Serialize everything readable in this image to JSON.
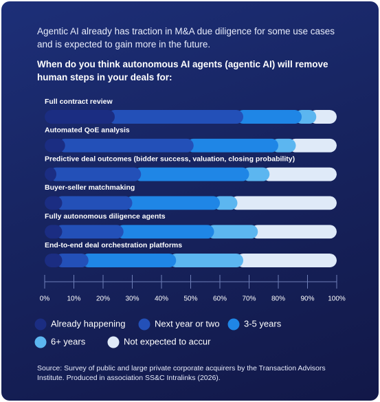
{
  "chart_data": {
    "type": "bar",
    "orientation": "horizontal",
    "stacked": true,
    "intro": "Agentic AI already has traction in M&A due diligence for some use cases and is expected to gain more in the future.",
    "title": "When do you think autonomous AI agents (agentic AI) will remove human steps in your deals for:",
    "categories": [
      "Full contract review",
      "Automated QoE analysis",
      "Predictive deal outcomes (bidder success, valuation, closing probability)",
      "Buyer-seller matchmaking",
      "Fully autonomous diligence agents",
      "End-to-end deal orchestration platforms"
    ],
    "series": [
      {
        "name": "Already happening",
        "color": "#1b2d82",
        "values": [
          24,
          7,
          4,
          6,
          6,
          6
        ]
      },
      {
        "name": "Next year or two",
        "color": "#2350b8",
        "values": [
          44,
          44,
          29,
          24,
          21,
          9
        ]
      },
      {
        "name": "3-5 years",
        "color": "#1f86e6",
        "values": [
          20,
          29,
          37,
          30,
          31,
          30
        ]
      },
      {
        "name": "6+ years",
        "color": "#5cb6f0",
        "values": [
          5,
          6,
          7,
          6,
          15,
          23
        ]
      },
      {
        "name": "Not expected to accur",
        "color": "#dfeaf8",
        "values": [
          7,
          14,
          23,
          34,
          27,
          32
        ]
      }
    ],
    "xlim": [
      0,
      100
    ],
    "xticks": [
      {
        "value": 0,
        "label": "0%"
      },
      {
        "value": 10,
        "label": "10%"
      },
      {
        "value": 20,
        "label": "20%"
      },
      {
        "value": 30,
        "label": "30%"
      },
      {
        "value": 40,
        "label": "40%"
      },
      {
        "value": 50,
        "label": "50%"
      },
      {
        "value": 60,
        "label": "60%"
      },
      {
        "value": 70,
        "label": "70%"
      },
      {
        "value": 80,
        "label": "80%"
      },
      {
        "value": 90,
        "label": "90%"
      },
      {
        "value": 100,
        "label": "100%"
      }
    ],
    "source": "Source: Survey of public and large private corporate acquirers by the Transaction Advisors Institute. Produced in association SS&C Intralinks (2026)."
  }
}
